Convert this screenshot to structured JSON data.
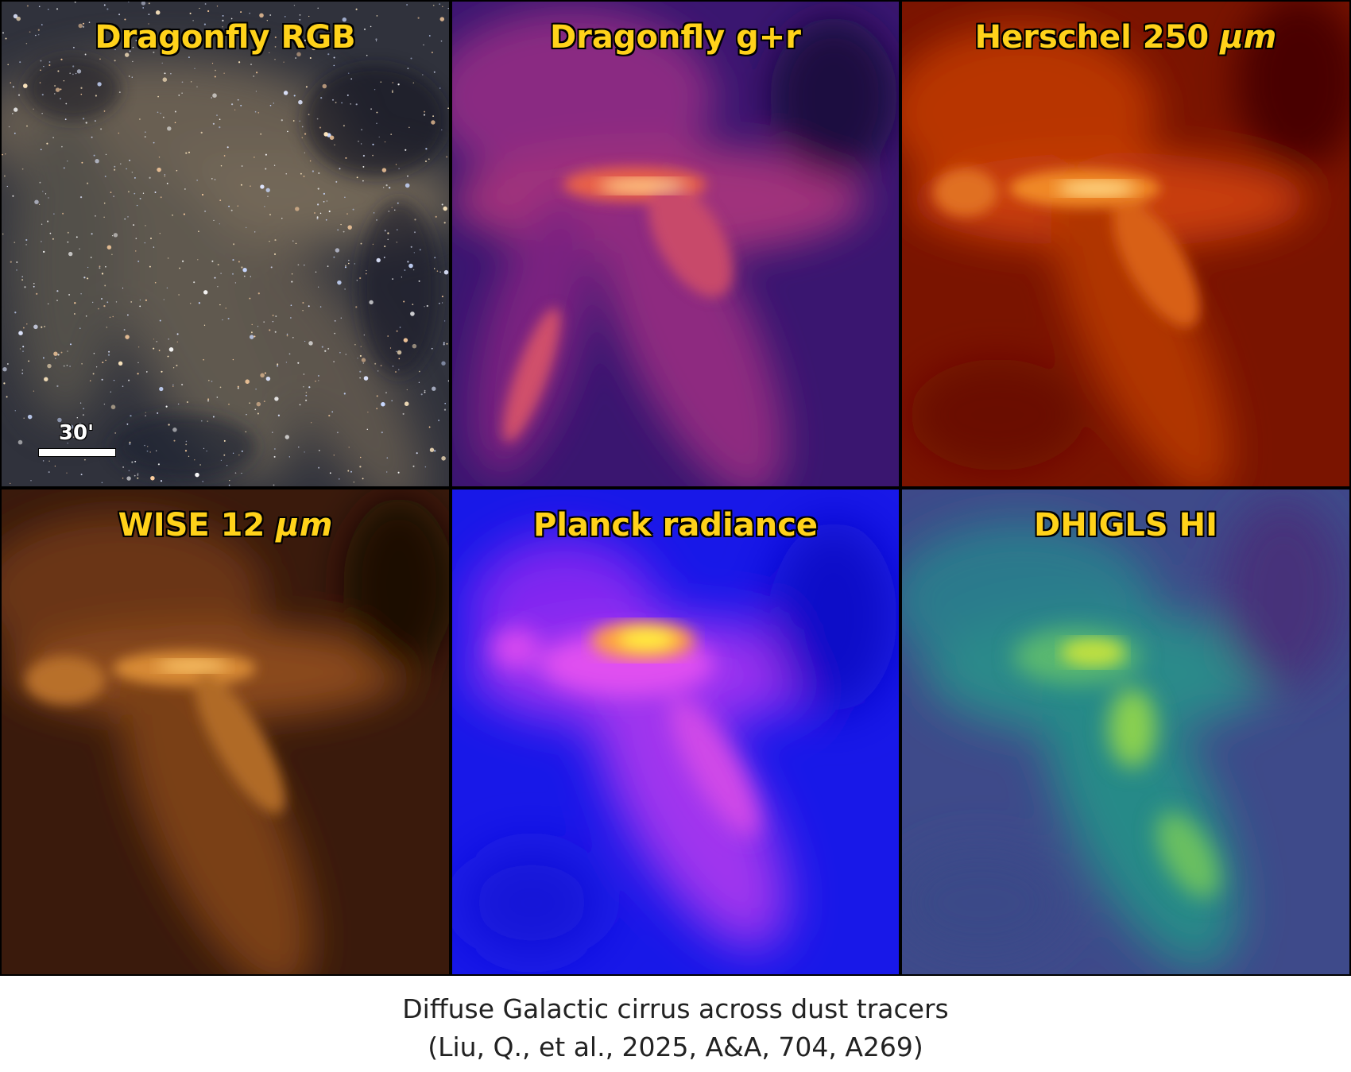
{
  "panels": [
    {
      "title": "Dragonfly RGB",
      "unit": ""
    },
    {
      "title": "Dragonfly g+r",
      "unit": ""
    },
    {
      "title": "Herschel 250 ",
      "unit": "μm"
    },
    {
      "title": "WISE 12 ",
      "unit": "μm"
    },
    {
      "title": "Planck radiance",
      "unit": ""
    },
    {
      "title": "DHIGLS HI",
      "unit": ""
    }
  ],
  "scalebar": {
    "label": "30'"
  },
  "caption": {
    "line1": "Diffuse Galactic cirrus across dust tracers",
    "line2": "(Liu, Q., et al., 2025, A&A, 704, A269)"
  },
  "colors": {
    "title": "#ffd21a",
    "rgb": [
      "#2a2a33",
      "#8a7860"
    ],
    "magma": [
      "#1a0a3a",
      "#b8327a",
      "#ffd28a"
    ],
    "gist_heat": [
      "#4a0600",
      "#c83a06",
      "#ffd070"
    ],
    "copper": [
      "#2a1208",
      "#a85a20",
      "#ffc860"
    ],
    "gnuplot2": [
      "#1010e0",
      "#e040ff",
      "#fff040"
    ],
    "viridis": [
      "#402a7a",
      "#2aa090",
      "#c8e040"
    ]
  }
}
